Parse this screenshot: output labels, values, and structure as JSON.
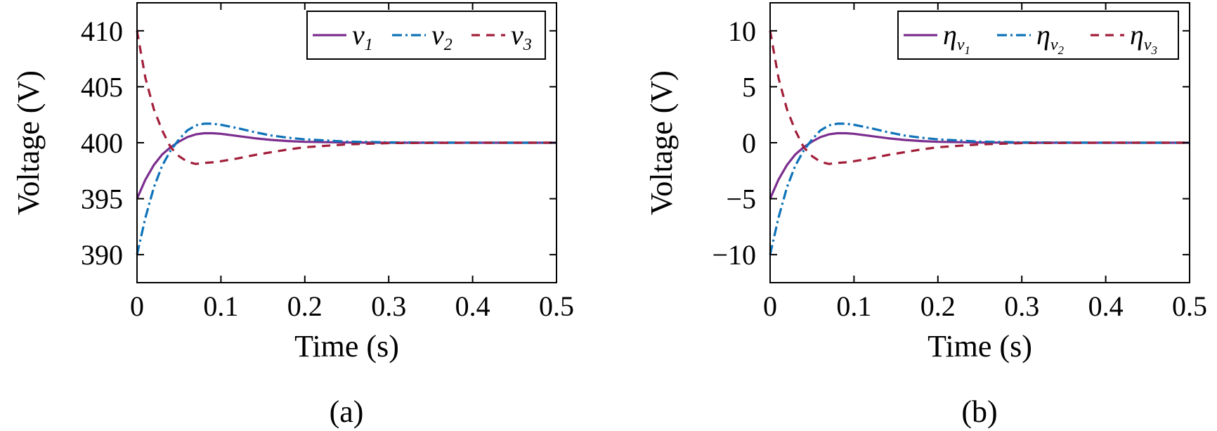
{
  "charts": [
    {
      "type": "line",
      "caption": "(a)",
      "xlabel": "Time (s)",
      "ylabel": "Voltage (V)",
      "xlim": [
        0,
        0.5
      ],
      "ylim": [
        387.5,
        412.5
      ],
      "xticks": [
        0,
        0.1,
        0.2,
        0.3,
        0.4,
        0.5
      ],
      "xtick_labels": [
        "0",
        "0.1",
        "0.2",
        "0.3",
        "0.4",
        "0.5"
      ],
      "yticks": [
        390,
        395,
        400,
        405,
        410
      ],
      "ytick_labels": [
        "390",
        "395",
        "400",
        "405",
        "410"
      ],
      "legend_position": "top-right",
      "legend": [
        {
          "symbol": "v",
          "sub": "1",
          "subsub": ""
        },
        {
          "symbol": "v",
          "sub": "2",
          "subsub": ""
        },
        {
          "symbol": "v",
          "sub": "3",
          "subsub": ""
        }
      ],
      "colors": [
        "#7B2D8E",
        "#0E72B8",
        "#A21F3A"
      ],
      "dashes": [
        "",
        "14,5,3,5",
        "12,9"
      ],
      "chart_data": {
        "type": "line",
        "x": [
          0,
          0.01,
          0.02,
          0.03,
          0.04,
          0.05,
          0.06,
          0.07,
          0.08,
          0.09,
          0.1,
          0.12,
          0.14,
          0.16,
          0.18,
          0.2,
          0.25,
          0.3,
          0.4,
          0.5
        ],
        "series": [
          {
            "name": "v1",
            "values": [
              395,
              396.7,
              398.0,
              398.95,
              399.6,
              400.1,
              400.5,
              400.75,
              400.85,
              400.85,
              400.8,
              400.6,
              400.4,
              400.25,
              400.15,
              400.08,
              400.02,
              400,
              400,
              400
            ]
          },
          {
            "name": "v2",
            "values": [
              390,
              393.3,
              396.0,
              397.95,
              399.3,
              400.3,
              401.1,
              401.55,
              401.7,
              401.7,
              401.6,
              401.3,
              400.95,
              400.65,
              400.45,
              400.3,
              400.1,
              400.03,
              400,
              400
            ]
          },
          {
            "name": "v3",
            "values": [
              410,
              405.8,
              403.0,
              401.1,
              399.6,
              398.8,
              398.3,
              398.1,
              398.2,
              398.25,
              398.35,
              398.6,
              398.9,
              399.15,
              399.4,
              399.6,
              399.85,
              399.97,
              400,
              400
            ]
          }
        ]
      }
    },
    {
      "type": "line",
      "caption": "(b)",
      "xlabel": "Time (s)",
      "ylabel": "Voltage (V)",
      "xlim": [
        0,
        0.5
      ],
      "ylim": [
        -12.5,
        12.5
      ],
      "xticks": [
        0,
        0.1,
        0.2,
        0.3,
        0.4,
        0.5
      ],
      "xtick_labels": [
        "0",
        "0.1",
        "0.2",
        "0.3",
        "0.4",
        "0.5"
      ],
      "yticks": [
        -10,
        -5,
        0,
        5,
        10
      ],
      "ytick_labels": [
        "−10",
        "−5",
        "0",
        "5",
        "10"
      ],
      "legend_position": "top-right",
      "legend": [
        {
          "symbol": "η",
          "sub": "v",
          "subsub": "1"
        },
        {
          "symbol": "η",
          "sub": "v",
          "subsub": "2"
        },
        {
          "symbol": "η",
          "sub": "v",
          "subsub": "3"
        }
      ],
      "colors": [
        "#7B2D8E",
        "#0E72B8",
        "#A21F3A"
      ],
      "dashes": [
        "",
        "14,5,3,5",
        "12,9"
      ],
      "chart_data": {
        "type": "line",
        "x": [
          0,
          0.01,
          0.02,
          0.03,
          0.04,
          0.05,
          0.06,
          0.07,
          0.08,
          0.09,
          0.1,
          0.12,
          0.14,
          0.16,
          0.18,
          0.2,
          0.25,
          0.3,
          0.4,
          0.5
        ],
        "series": [
          {
            "name": "η_v1",
            "values": [
              -5,
              -3.3,
              -2.0,
              -1.05,
              -0.4,
              0.1,
              0.5,
              0.75,
              0.85,
              0.85,
              0.8,
              0.6,
              0.4,
              0.25,
              0.15,
              0.08,
              0.02,
              0,
              0,
              0
            ]
          },
          {
            "name": "η_v2",
            "values": [
              -10,
              -6.7,
              -4.0,
              -2.05,
              -0.7,
              0.3,
              1.1,
              1.55,
              1.7,
              1.7,
              1.6,
              1.3,
              0.95,
              0.65,
              0.45,
              0.3,
              0.1,
              0.03,
              0,
              0
            ]
          },
          {
            "name": "η_v3",
            "values": [
              10,
              5.8,
              3.0,
              1.1,
              -0.4,
              -1.2,
              -1.7,
              -1.9,
              -1.8,
              -1.75,
              -1.65,
              -1.4,
              -1.1,
              -0.85,
              -0.6,
              -0.4,
              -0.15,
              -0.03,
              0,
              0
            ]
          }
        ]
      }
    }
  ]
}
